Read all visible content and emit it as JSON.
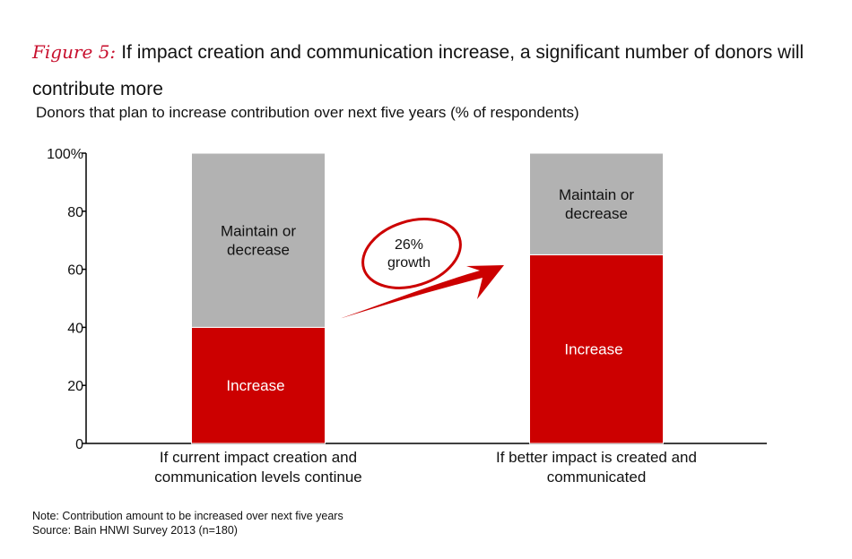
{
  "chart_data": {
    "type": "bar",
    "stacked": true,
    "figure_label": "Figure 5:",
    "title": "If impact creation and communication increase, a significant number of donors will contribute more",
    "subtitle": "Donors that plan to increase contribution over next five years (% of respondents)",
    "categories": [
      [
        "If current impact creation and",
        "communication levels continue"
      ],
      [
        "If better impact is created and",
        "communicated"
      ]
    ],
    "series": [
      {
        "name": "Increase",
        "values": [
          40,
          65
        ],
        "color": "#cc0000"
      },
      {
        "name": "Maintain or decrease",
        "label_lines": [
          "Maintain or",
          "decrease"
        ],
        "values": [
          60,
          35
        ],
        "color": "#b2b2b2"
      }
    ],
    "ylim": [
      0,
      100
    ],
    "yticks": [
      0,
      20,
      40,
      60,
      80,
      100
    ],
    "ytick_labels": [
      "0",
      "20",
      "40",
      "60",
      "80",
      "100%"
    ],
    "annotation": {
      "lines": [
        "26%",
        "growth"
      ]
    },
    "legend": "none",
    "grid": false
  },
  "notes": {
    "note": "Note: Contribution amount to be increased over next five years",
    "source": "Source: Bain HNWI Survey 2013 (n=180)"
  }
}
